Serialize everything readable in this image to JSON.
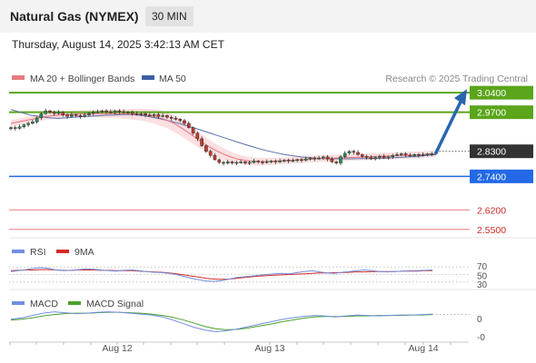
{
  "header": {
    "title": "Natural Gas (NYMEX)",
    "timeframe": "30 MIN",
    "datetime": "Thursday, August 14, 2025 3:42:13 AM CET"
  },
  "legend": {
    "ma20": "MA 20 + Bollinger Bands",
    "ma50": "MA 50",
    "credit": "Research © 2025 Trading Central"
  },
  "colors": {
    "resistance": "#5aa51a",
    "support": "#2369e6",
    "level_red": "#e87c80",
    "price": "#333333",
    "ma20": "#e6737a",
    "ma50": "#5b6fa8",
    "bb_fill": "#fbd9dc",
    "rsi": "#6f8fe0",
    "rsi_ma": "#d42a2a",
    "macd": "#6f8fe0",
    "macd_signal": "#4aa02a",
    "arrow": "#2a65b0",
    "candle_up": "#2e8b57",
    "candle_down": "#c0392b"
  },
  "chart_data": [
    {
      "type": "candlestick",
      "name": "price",
      "y_range": [
        2.52,
        3.06
      ],
      "x_ticks": [
        "Aug 12",
        "Aug 13",
        "Aug 14"
      ],
      "levels": [
        {
          "value": 3.04,
          "label": "3.0400",
          "kind": "resistance"
        },
        {
          "value": 2.97,
          "label": "2.9700",
          "kind": "resistance"
        },
        {
          "value": 2.83,
          "label": "2.8300",
          "kind": "price"
        },
        {
          "value": 2.74,
          "label": "2.7400",
          "kind": "support"
        },
        {
          "value": 2.62,
          "label": "2.6200",
          "kind": "level"
        },
        {
          "value": 2.55,
          "label": "2.5500",
          "kind": "level"
        }
      ],
      "close": [
        2.915,
        2.912,
        2.918,
        2.925,
        2.93,
        2.935,
        2.95,
        2.965,
        2.975,
        2.97,
        2.965,
        2.97,
        2.96,
        2.955,
        2.962,
        2.958,
        2.955,
        2.96,
        2.966,
        2.97,
        2.972,
        2.975,
        2.972,
        2.968,
        2.975,
        2.972,
        2.968,
        2.97,
        2.965,
        2.962,
        2.965,
        2.96,
        2.958,
        2.962,
        2.955,
        2.958,
        2.952,
        2.948,
        2.945,
        2.94,
        2.93,
        2.915,
        2.895,
        2.875,
        2.85,
        2.83,
        2.815,
        2.8,
        2.79,
        2.787,
        2.792,
        2.788,
        2.79,
        2.792,
        2.788,
        2.79,
        2.795,
        2.792,
        2.79,
        2.793,
        2.795,
        2.792,
        2.796,
        2.798,
        2.795,
        2.797,
        2.8,
        2.798,
        2.803,
        2.806,
        2.803,
        2.806,
        2.81,
        2.802,
        2.792,
        2.788,
        2.81,
        2.823,
        2.83,
        2.826,
        2.818,
        2.812,
        2.808,
        2.803,
        2.808,
        2.812,
        2.806,
        2.81,
        2.815,
        2.818,
        2.821,
        2.816,
        2.814,
        2.818,
        2.815,
        2.818,
        2.82,
        2.822,
        2.825
      ],
      "ma20": [
        2.93,
        2.935,
        2.94,
        2.945,
        2.95,
        2.955,
        2.958,
        2.96,
        2.962,
        2.963,
        2.964,
        2.965,
        2.965,
        2.965,
        2.965,
        2.965,
        2.964,
        2.963,
        2.962,
        2.96,
        2.956,
        2.95,
        2.942,
        2.93,
        2.915,
        2.898,
        2.88,
        2.862,
        2.846,
        2.832,
        2.82,
        2.81,
        2.802,
        2.797,
        2.794,
        2.793,
        2.793,
        2.794,
        2.795,
        2.797,
        2.798,
        2.8,
        2.801,
        2.803,
        2.804,
        2.805,
        2.806,
        2.807,
        2.808,
        2.809,
        2.81,
        2.811,
        2.812,
        2.813,
        2.814,
        2.815,
        2.816,
        2.817,
        2.818,
        2.82,
        2.822
      ],
      "ma50": [
        2.98,
        2.97,
        2.96,
        2.955,
        2.95,
        2.948,
        2.95,
        2.953,
        2.955,
        2.957,
        2.959,
        2.96,
        2.962,
        2.961,
        2.958,
        2.952,
        2.945,
        2.937,
        2.928,
        2.918,
        2.907,
        2.896,
        2.885,
        2.874,
        2.863,
        2.852,
        2.842,
        2.833,
        2.825,
        2.818,
        2.813,
        2.809,
        2.806,
        2.804,
        2.803,
        2.803,
        2.803,
        2.804,
        2.804,
        2.805,
        2.806,
        2.808,
        2.81,
        2.812,
        2.815,
        2.818
      ],
      "forecast_arrow": {
        "from": 2.825,
        "to": 3.04
      }
    },
    {
      "type": "line",
      "name": "rsi",
      "legend": [
        "RSI",
        "9MA"
      ],
      "y_ticks": [
        "70",
        "50",
        "30"
      ],
      "rsi": [
        58,
        60,
        63,
        66,
        68,
        66,
        62,
        60,
        61,
        63,
        65,
        64,
        62,
        60,
        59,
        61,
        62,
        60,
        58,
        56,
        55,
        53,
        50,
        45,
        40,
        36,
        33,
        32,
        34,
        38,
        42,
        44,
        46,
        48,
        50,
        52,
        53,
        52,
        55,
        58,
        60,
        57,
        54,
        53,
        56,
        58,
        60,
        62,
        60,
        58,
        57,
        58,
        59,
        60,
        60,
        61,
        62
      ],
      "ma": [
        60,
        61,
        62,
        62,
        63,
        63,
        62,
        61,
        61,
        62,
        62,
        62,
        61,
        61,
        60,
        60,
        60,
        59,
        58,
        57,
        56,
        54,
        52,
        49,
        46,
        43,
        40,
        38,
        37,
        38,
        40,
        42,
        44,
        46,
        47,
        48,
        49,
        50,
        51,
        52,
        53,
        54,
        54,
        55,
        55,
        56,
        57,
        57,
        58,
        58,
        58,
        58,
        59,
        59,
        59,
        60,
        60
      ]
    },
    {
      "type": "line",
      "name": "macd",
      "legend": [
        "MACD",
        "MACD Signal"
      ],
      "y_ticks": [
        "0",
        "-0"
      ],
      "macd": [
        0.2,
        0.5,
        1.0,
        1.5,
        1.8,
        1.6,
        1.4,
        1.5,
        1.7,
        1.8,
        1.7,
        1.5,
        1.3,
        1.1,
        0.7,
        0.0,
        -0.8,
        -1.6,
        -2.2,
        -2.5,
        -2.3,
        -1.9,
        -1.4,
        -0.9,
        -0.4,
        0.1,
        0.5,
        0.8,
        1.0,
        0.9,
        0.7,
        0.9,
        1.1,
        1.0,
        0.9,
        1.0,
        1.1,
        1.1,
        1.2,
        1.3
      ],
      "signal": [
        0.0,
        0.2,
        0.5,
        0.9,
        1.2,
        1.4,
        1.5,
        1.5,
        1.6,
        1.7,
        1.7,
        1.6,
        1.5,
        1.3,
        1.0,
        0.6,
        0.0,
        -0.7,
        -1.4,
        -1.9,
        -2.1,
        -2.0,
        -1.7,
        -1.3,
        -0.9,
        -0.4,
        0.0,
        0.4,
        0.7,
        0.8,
        0.8,
        0.8,
        0.9,
        0.9,
        1.0,
        1.0,
        1.0,
        1.1,
        1.1,
        1.2
      ]
    }
  ]
}
